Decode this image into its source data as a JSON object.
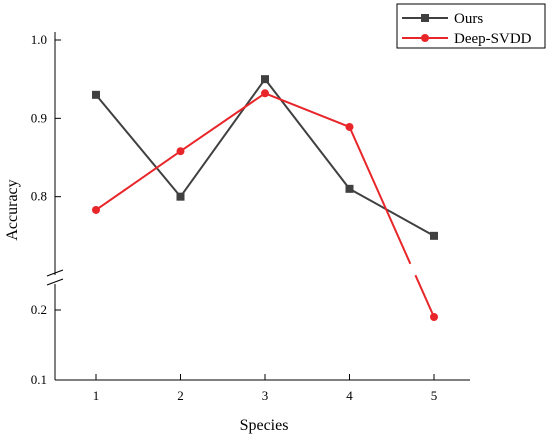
{
  "chart_data": {
    "type": "line",
    "xlabel": "Species",
    "ylabel": "Accuracy",
    "x": [
      1,
      2,
      3,
      4,
      5
    ],
    "x_tick_labels": [
      "1",
      "2",
      "3",
      "4",
      "5"
    ],
    "y_axis_break": true,
    "ylim_upper": [
      0.7,
      1.0
    ],
    "ylim_lower": [
      0.1,
      0.25
    ],
    "y_tick_labels": [
      "1.0",
      "0.9",
      "0.8",
      "0.2",
      "0.1"
    ],
    "legend_position": "top-right",
    "grid": false,
    "series": [
      {
        "name": "Ours",
        "color": "#404040",
        "marker": "square",
        "values": [
          0.93,
          0.8,
          0.95,
          0.81,
          0.75
        ]
      },
      {
        "name": "Deep-SVDD",
        "color": "#e8262a",
        "marker": "circle",
        "values": [
          0.783,
          0.858,
          0.932,
          0.889,
          0.19
        ]
      }
    ]
  }
}
